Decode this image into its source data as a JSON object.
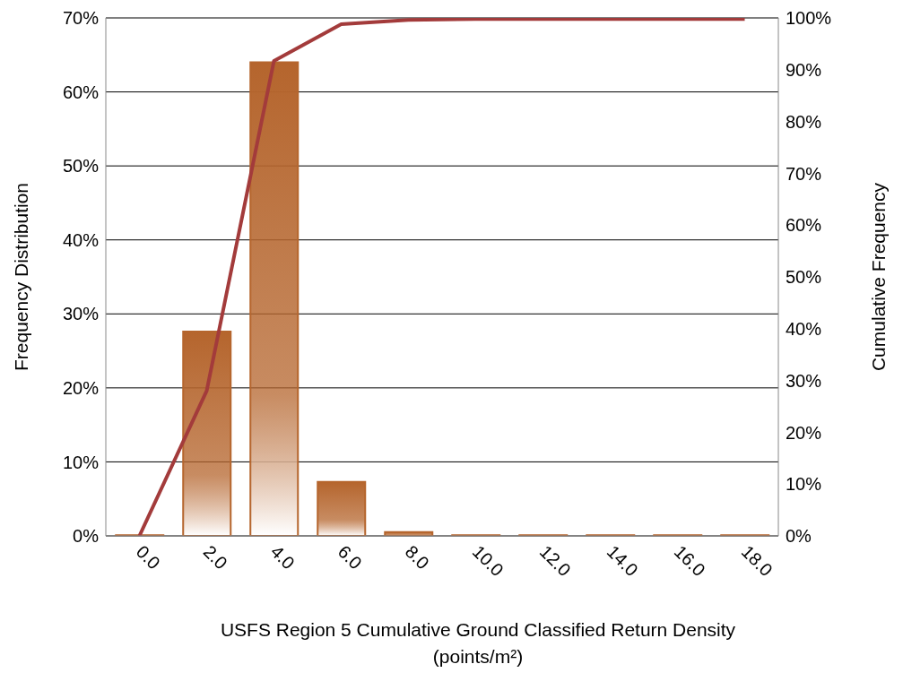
{
  "chart_data": {
    "type": "bar",
    "xlabel": "USFS Region 5 Cumulative Ground Classified Return Density\n(points/m²)",
    "ylabel": "Frequency Distribution",
    "y2label": "Cumulative Frequency",
    "categories": [
      "0.0",
      "2.0",
      "4.0",
      "6.0",
      "8.0",
      "10.0",
      "12.0",
      "14.0",
      "16.0",
      "18.0"
    ],
    "series": [
      {
        "color": "#b5652d",
        "values": [
          0.1,
          27.6,
          64.0,
          7.3,
          0.5,
          0.1,
          0.1,
          0.1,
          0.1,
          0.1
        ]
      },
      {
        "type": "line",
        "axis": "y2",
        "color": "#a33b3b",
        "values": [
          0,
          28,
          91.7,
          98.8,
          99.6,
          99.8,
          99.8,
          99.8,
          99.8,
          99.8
        ]
      }
    ],
    "ylim": [
      0,
      70
    ],
    "yticks": [
      {
        "value": 0,
        "label": "0%"
      },
      {
        "value": 10,
        "label": "10%"
      },
      {
        "value": 20,
        "label": "20%"
      },
      {
        "value": 30,
        "label": "30%"
      },
      {
        "value": 40,
        "label": "40%"
      },
      {
        "value": 50,
        "label": "50%"
      },
      {
        "value": 60,
        "label": "60%"
      },
      {
        "value": 70,
        "label": "70%"
      }
    ],
    "y2lim": [
      0,
      100
    ],
    "y2ticks": [
      {
        "value": 0,
        "label": "0%"
      },
      {
        "value": 10,
        "label": "10%"
      },
      {
        "value": 20,
        "label": "20%"
      },
      {
        "value": 30,
        "label": "30%"
      },
      {
        "value": 40,
        "label": "40%"
      },
      {
        "value": 50,
        "label": "50%"
      },
      {
        "value": 60,
        "label": "60%"
      },
      {
        "value": 70,
        "label": "70%"
      },
      {
        "value": 80,
        "label": "80%"
      },
      {
        "value": 90,
        "label": "90%"
      },
      {
        "value": 100,
        "label": "100%"
      }
    ],
    "grid": "y",
    "legend": false,
    "marker": "none",
    "line_style": "solid"
  }
}
